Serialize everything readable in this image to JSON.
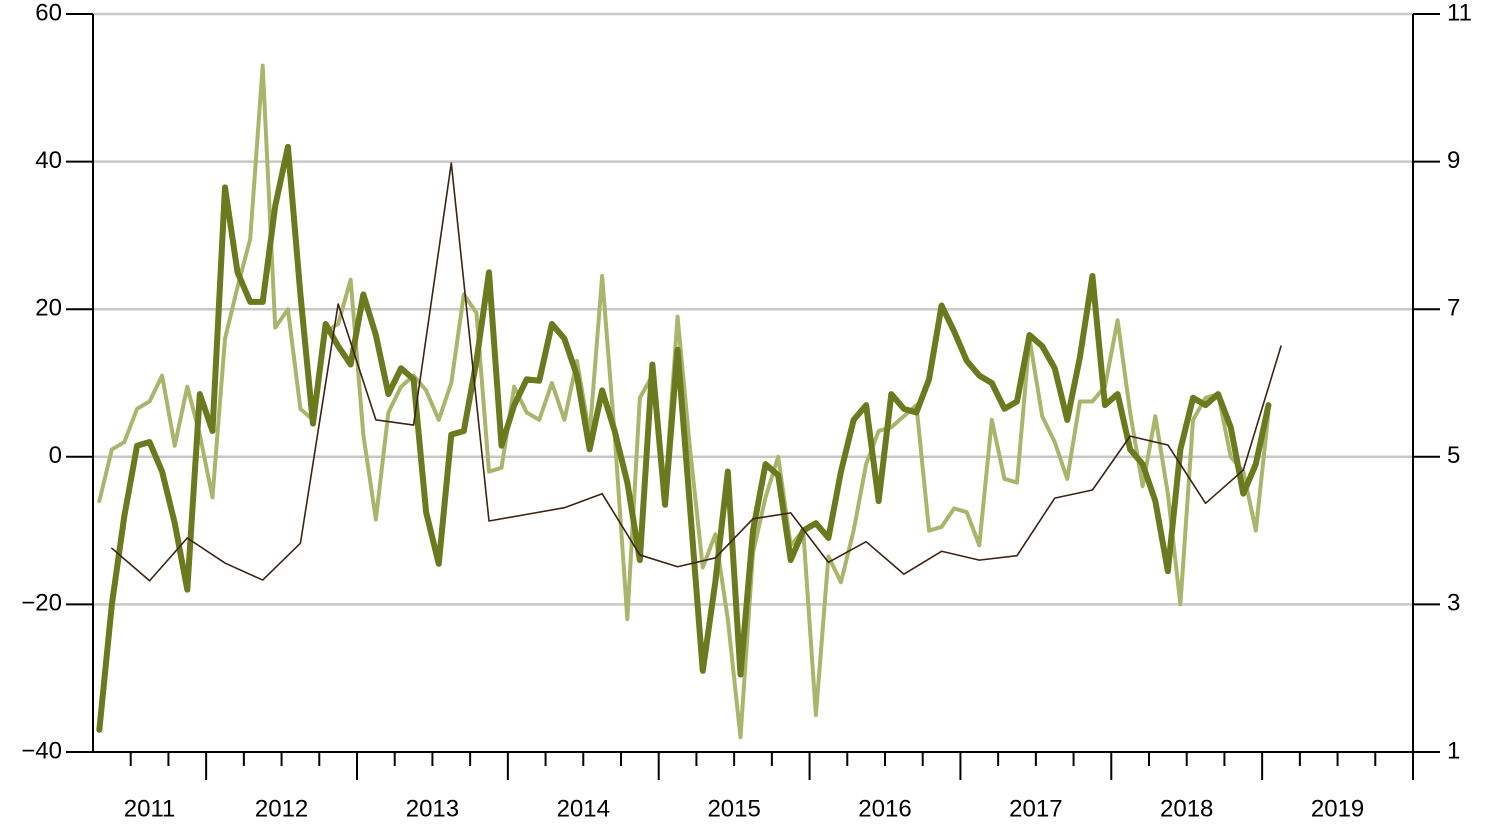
{
  "chart_data": {
    "type": "line",
    "x": [
      2011.292,
      2011.375,
      2011.458,
      2011.542,
      2011.625,
      2011.708,
      2011.792,
      2011.875,
      2011.958,
      2012.042,
      2012.125,
      2012.208,
      2012.292,
      2012.375,
      2012.458,
      2012.542,
      2012.625,
      2012.708,
      2012.792,
      2012.875,
      2012.958,
      2013.042,
      2013.125,
      2013.208,
      2013.292,
      2013.375,
      2013.458,
      2013.542,
      2013.625,
      2013.708,
      2013.792,
      2013.875,
      2013.958,
      2014.042,
      2014.125,
      2014.208,
      2014.292,
      2014.375,
      2014.458,
      2014.542,
      2014.625,
      2014.708,
      2014.792,
      2014.875,
      2014.958,
      2015.042,
      2015.125,
      2015.208,
      2015.292,
      2015.375,
      2015.458,
      2015.542,
      2015.625,
      2015.708,
      2015.792,
      2015.875,
      2015.958,
      2016.042,
      2016.125,
      2016.208,
      2016.292,
      2016.375,
      2016.458,
      2016.542,
      2016.625,
      2016.708,
      2016.792,
      2016.875,
      2016.958,
      2017.042,
      2017.125,
      2017.208,
      2017.292,
      2017.375,
      2017.458,
      2017.542,
      2017.625,
      2017.708,
      2017.792,
      2017.875,
      2017.958,
      2018.042,
      2018.125,
      2018.208,
      2018.292,
      2018.375,
      2018.458,
      2018.542,
      2018.625,
      2018.708,
      2018.792,
      2018.875,
      2018.958,
      2019.042
    ],
    "series": [
      {
        "color": "#a9b56b",
        "values": [
          -6,
          1,
          2,
          6.5,
          7.5,
          11,
          1.5,
          9.5,
          3,
          -5.5,
          16,
          23,
          29.5,
          53,
          17.5,
          20,
          6.5,
          5,
          17,
          18,
          24,
          3,
          -8.5,
          6,
          9.5,
          11,
          9,
          5,
          10,
          22,
          19.5,
          -2,
          -1.5,
          9.5,
          6,
          5,
          10,
          5,
          13,
          3,
          24.5,
          3,
          -22,
          8,
          11,
          -5,
          19,
          1,
          -15,
          -10.5,
          -22,
          -38,
          -13,
          -5.5,
          0,
          -12,
          -10,
          -35,
          -13.5,
          -17,
          -10,
          -1,
          3.5,
          4,
          5.5,
          7,
          -10,
          -9.5,
          -7,
          -7.5,
          -12,
          5,
          -3,
          -3.5,
          16,
          5.5,
          2,
          -3,
          7.5,
          7.5,
          9.5,
          18.5,
          6,
          -4,
          5.5,
          -5,
          -20,
          5,
          8,
          8.5,
          0,
          -2,
          -10,
          6
        ]
      },
      {
        "color": "#6b7a1f",
        "values": [
          -37,
          -20,
          -8,
          1.5,
          2,
          -2,
          -9,
          -18,
          8.5,
          3.5,
          36.5,
          25,
          21,
          21,
          34,
          42,
          22,
          4.5,
          18,
          15,
          12.5,
          22,
          16.5,
          8.5,
          12,
          10.5,
          -7.5,
          -14.5,
          3,
          3.5,
          13,
          25,
          1.5,
          7,
          10.5,
          10.3,
          18,
          16,
          11,
          1,
          9,
          3.5,
          -3.5,
          -14,
          12.5,
          -6.5,
          14.5,
          -7,
          -29,
          -17,
          -2,
          -29.5,
          -10,
          -1,
          -2.5,
          -14,
          -10,
          -9,
          -11,
          -2,
          5,
          7,
          -6,
          8.5,
          6.5,
          6,
          10.5,
          20.5,
          17,
          13,
          11,
          10,
          6.5,
          7.5,
          16.5,
          15,
          12,
          5,
          13.5,
          24.5,
          7,
          8.5,
          1,
          -1,
          -6,
          -15.5,
          1,
          8,
          7,
          8.5,
          4,
          -5,
          -1,
          7
        ]
      },
      {
        "color": "#3d2314",
        "axis": "y2",
        "x": [
          2011.375,
          2011.625,
          2011.875,
          2012.125,
          2012.375,
          2012.625,
          2012.875,
          2013.125,
          2013.375,
          2013.625,
          2013.875,
          2014.125,
          2014.375,
          2014.625,
          2014.875,
          2015.125,
          2015.375,
          2015.625,
          2015.875,
          2016.125,
          2016.375,
          2016.625,
          2016.875,
          2017.125,
          2017.375,
          2017.625,
          2017.875,
          2018.125,
          2018.375,
          2018.625,
          2018.875,
          2019.125
        ],
        "values": [
          3.76,
          3.32,
          3.9,
          3.56,
          3.33,
          3.83,
          7.07,
          5.5,
          5.43,
          8.98,
          4.13,
          4.22,
          4.31,
          4.5,
          3.67,
          3.51,
          3.63,
          4.16,
          4.24,
          3.57,
          3.85,
          3.41,
          3.72,
          3.6,
          3.66,
          4.44,
          4.55,
          5.28,
          5.16,
          4.37,
          4.82,
          6.5
        ]
      }
    ],
    "xlim": [
      2011.25,
      2020
    ],
    "xticks": [
      2012,
      2013,
      2014,
      2015,
      2016,
      2017,
      2018,
      2019,
      2020
    ],
    "xminor": [
      2011.5,
      2011.75,
      2012.25,
      2012.5,
      2012.75,
      2013.25,
      2013.5,
      2013.75,
      2014.25,
      2014.5,
      2014.75,
      2015.25,
      2015.5,
      2015.75,
      2016.25,
      2016.5,
      2016.75,
      2017.25,
      2017.5,
      2017.75,
      2018.25,
      2018.5,
      2018.75,
      2019.25,
      2019.5,
      2019.75
    ],
    "xlabels": [
      2011,
      2012,
      2013,
      2014,
      2015,
      2016,
      2017,
      2018,
      2019
    ],
    "ylim": [
      -40,
      60
    ],
    "yticks": [
      {
        "value": -40,
        "label": "−40"
      },
      {
        "value": -20,
        "label": "−20"
      },
      0,
      20,
      40,
      60
    ],
    "y2lim": [
      1,
      11
    ],
    "y2ticks": [
      1,
      3,
      5,
      7,
      9,
      11
    ],
    "grid": true
  }
}
